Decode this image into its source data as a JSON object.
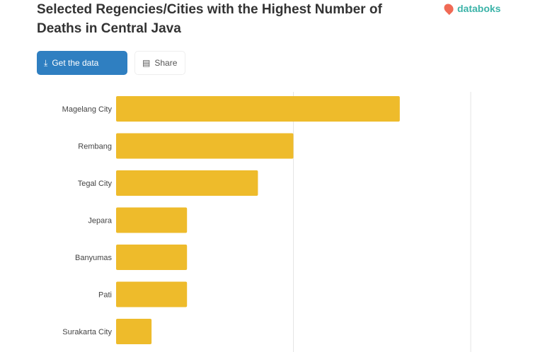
{
  "header": {
    "title": "Selected Regencies/Cities with the Highest Number of Deaths in Central Java",
    "logo": "databoks"
  },
  "toolbar": {
    "data_button": "Get the data",
    "share_button": "Share"
  },
  "colors": {
    "bar": "#eebb2b",
    "button": "#2f7fc1"
  },
  "chart_data": {
    "type": "bar",
    "orientation": "horizontal",
    "categories": [
      "Magelang City",
      "Rembang",
      "Tegal City",
      "Jepara",
      "Banyumas",
      "Pati",
      "Surakarta City"
    ],
    "values": [
      8,
      5,
      4,
      2,
      2,
      2,
      1
    ],
    "xlim": [
      0,
      10
    ],
    "grid": true,
    "legend": "none"
  }
}
